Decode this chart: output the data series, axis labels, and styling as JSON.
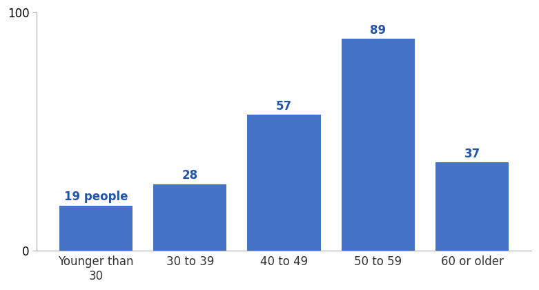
{
  "categories": [
    "Younger than\n30",
    "30 to 39",
    "40 to 49",
    "50 to 59",
    "60 or older"
  ],
  "values": [
    19,
    28,
    57,
    89,
    37
  ],
  "bar_color": "#4472C4",
  "label_color": "#2255AA",
  "label_first": "19 people",
  "ylim": [
    0,
    100
  ],
  "yticks": [
    0,
    100
  ],
  "bar_width": 0.78,
  "background_color": "#ffffff",
  "label_fontsize": 12,
  "tick_fontsize": 12,
  "label_fontweight": "bold",
  "spine_color": "#aaaaaa"
}
